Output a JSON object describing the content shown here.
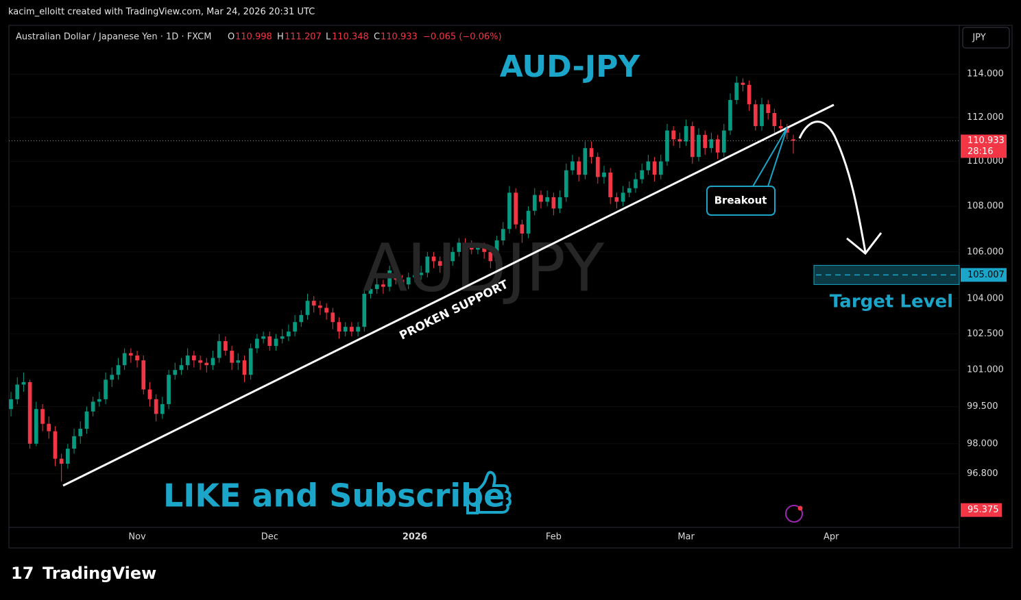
{
  "header": {
    "author_line": "kacim_elloitt created with TradingView.com, Mar 24, 2026 20:31 UTC",
    "symbol": "Australian Dollar / Japanese Yen · 1D · FXCM",
    "o_label": "O",
    "h_label": "H",
    "l_label": "L",
    "c_label": "C",
    "open": 110.998,
    "high": 111.207,
    "low": 110.348,
    "close": 110.933,
    "change": "−0.065 (−0.06%)",
    "currency": "JPY"
  },
  "chart_data": {
    "type": "candlestick",
    "title": "AUD-JPY",
    "watermark": "AUDJPY",
    "log": true,
    "up_color": "#089981",
    "down_color": "#f23645",
    "xlim": [
      -0.33,
      150.3
    ],
    "ylim": [
      94.7,
      116.2
    ],
    "xticks": [
      {
        "value": 20,
        "label": "Nov"
      },
      {
        "value": 41,
        "label": "Dec"
      },
      {
        "value": 64,
        "label": "2026"
      },
      {
        "value": 86,
        "label": "Feb"
      },
      {
        "value": 107,
        "label": "Mar"
      },
      {
        "value": 130,
        "label": "Apr"
      }
    ],
    "yticks": [
      {
        "value": 114,
        "label": "114.000"
      },
      {
        "value": 112,
        "label": "112.000"
      },
      {
        "value": 110,
        "label": "110.000"
      },
      {
        "value": 108,
        "label": "108.000"
      },
      {
        "value": 106,
        "label": "106.000"
      },
      {
        "value": 104,
        "label": "104.000"
      },
      {
        "value": 102.5,
        "label": "102.500"
      },
      {
        "value": 101,
        "label": "101.000"
      },
      {
        "value": 99.5,
        "label": "99.500"
      },
      {
        "value": 98,
        "label": "98.000"
      },
      {
        "value": 96.8,
        "label": "96.800"
      }
    ],
    "open": [
      99.4,
      99.8,
      100.4,
      100.5,
      98.0,
      99.4,
      98.8,
      98.5,
      97.4,
      97.2,
      97.8,
      98.3,
      98.6,
      99.3,
      99.7,
      99.8,
      100.6,
      100.8,
      101.2,
      101.7,
      101.6,
      101.4,
      100.2,
      99.8,
      99.2,
      99.6,
      100.8,
      101.0,
      101.2,
      101.6,
      101.4,
      101.3,
      101.2,
      101.5,
      102.2,
      101.8,
      101.3,
      101.4,
      100.8,
      101.9,
      102.3,
      102.4,
      102.0,
      102.3,
      102.4,
      102.6,
      103.0,
      103.3,
      103.9,
      103.7,
      103.6,
      103.4,
      103.0,
      102.6,
      102.8,
      102.6,
      102.8,
      104.2,
      104.4,
      104.6,
      104.5,
      105.2,
      104.8,
      104.6,
      104.9,
      105.0,
      105.1,
      105.8,
      105.6,
      105.4,
      105.6,
      106.0,
      106.4,
      106.3,
      106.1,
      106.2,
      106.0,
      105.6,
      106.5,
      107.0,
      108.6,
      107.2,
      106.8,
      107.8,
      108.5,
      108.2,
      108.4,
      107.9,
      108.4,
      109.6,
      110.0,
      109.4,
      110.6,
      110.2,
      109.3,
      109.5,
      108.4,
      108.2,
      108.6,
      108.8,
      109.2,
      109.6,
      110.0,
      109.4,
      110.0,
      111.4,
      111.0,
      110.9,
      111.6,
      110.2,
      111.2,
      110.6,
      111.0,
      110.4,
      111.4,
      112.8,
      113.6,
      113.5,
      112.6,
      111.6,
      112.6,
      112.2,
      111.6,
      111.5,
      110.998
    ],
    "high": [
      100.1,
      100.7,
      100.9,
      100.6,
      99.7,
      99.6,
      99.1,
      98.7,
      97.6,
      98.0,
      98.6,
      98.9,
      99.5,
      99.9,
      100.1,
      100.9,
      101.1,
      101.5,
      101.9,
      101.9,
      101.8,
      101.6,
      100.5,
      100.0,
      99.9,
      101.0,
      101.3,
      101.5,
      101.9,
      101.8,
      101.6,
      101.5,
      101.8,
      102.5,
      102.4,
      102.0,
      101.7,
      101.6,
      102.1,
      102.5,
      102.6,
      102.6,
      102.5,
      102.7,
      102.9,
      103.3,
      103.5,
      104.2,
      104.1,
      103.9,
      103.8,
      103.6,
      103.2,
      103.0,
      103.0,
      103.0,
      104.4,
      104.6,
      104.9,
      104.8,
      105.4,
      105.4,
      105.0,
      105.1,
      105.3,
      105.4,
      106.0,
      106.0,
      105.8,
      105.9,
      106.2,
      106.6,
      106.6,
      106.5,
      106.4,
      106.4,
      106.2,
      106.7,
      107.3,
      108.9,
      108.8,
      107.4,
      108.0,
      108.8,
      108.7,
      108.7,
      108.6,
      108.7,
      109.9,
      110.3,
      110.2,
      110.9,
      110.9,
      110.4,
      109.8,
      109.7,
      108.6,
      108.9,
      109.1,
      109.5,
      109.9,
      110.3,
      110.2,
      110.3,
      111.7,
      111.6,
      111.3,
      111.9,
      111.8,
      111.5,
      111.4,
      111.3,
      111.2,
      111.7,
      113.1,
      113.9,
      113.8,
      113.7,
      112.8,
      112.9,
      112.8,
      112.4,
      111.9,
      111.7,
      111.207
    ],
    "low": [
      99.1,
      99.6,
      100.1,
      97.8,
      97.9,
      98.5,
      98.2,
      97.1,
      96.5,
      97.0,
      97.6,
      98.0,
      98.4,
      99.1,
      99.5,
      99.6,
      100.3,
      100.6,
      101.0,
      101.3,
      101.1,
      100.0,
      99.5,
      98.9,
      99.0,
      99.4,
      100.6,
      100.8,
      101.0,
      101.1,
      101.0,
      100.9,
      101.0,
      101.3,
      101.6,
      101.0,
      101.0,
      100.5,
      100.6,
      101.7,
      102.1,
      101.8,
      101.8,
      102.1,
      102.2,
      102.4,
      102.8,
      103.1,
      103.4,
      103.3,
      103.1,
      102.7,
      102.3,
      102.4,
      102.4,
      102.4,
      102.6,
      104.0,
      104.2,
      104.2,
      104.3,
      104.6,
      104.4,
      104.4,
      104.7,
      104.8,
      104.9,
      105.3,
      105.1,
      105.2,
      105.4,
      105.8,
      106.1,
      105.9,
      105.9,
      105.7,
      105.3,
      105.4,
      106.3,
      106.8,
      107.0,
      106.4,
      106.6,
      107.6,
      107.9,
      108.0,
      107.6,
      107.7,
      108.2,
      109.4,
      109.1,
      109.2,
      109.9,
      109.0,
      109.0,
      108.1,
      107.9,
      108.0,
      108.4,
      108.6,
      109.0,
      109.4,
      109.1,
      109.2,
      109.8,
      110.7,
      110.6,
      110.7,
      109.9,
      110.0,
      110.3,
      110.4,
      110.1,
      110.2,
      111.2,
      112.6,
      113.2,
      112.3,
      111.4,
      111.4,
      111.9,
      111.3,
      111.3,
      111.0,
      110.348
    ],
    "close": [
      99.8,
      100.4,
      100.5,
      98.0,
      99.4,
      98.8,
      98.5,
      97.4,
      97.2,
      97.8,
      98.3,
      98.6,
      99.3,
      99.7,
      99.8,
      100.6,
      100.8,
      101.2,
      101.7,
      101.6,
      101.4,
      100.2,
      99.8,
      99.2,
      99.6,
      100.8,
      101.0,
      101.2,
      101.6,
      101.4,
      101.3,
      101.2,
      101.5,
      102.2,
      101.8,
      101.3,
      101.4,
      100.8,
      101.9,
      102.3,
      102.4,
      102.0,
      102.3,
      102.4,
      102.6,
      103.0,
      103.3,
      103.9,
      103.7,
      103.6,
      103.4,
      103.0,
      102.6,
      102.8,
      102.6,
      102.8,
      104.2,
      104.4,
      104.6,
      104.5,
      105.2,
      104.8,
      104.6,
      104.9,
      105.0,
      105.1,
      105.8,
      105.6,
      105.4,
      105.6,
      106.0,
      106.4,
      106.3,
      106.1,
      106.2,
      106.0,
      105.6,
      106.5,
      107.0,
      108.6,
      107.2,
      106.8,
      107.8,
      108.5,
      108.2,
      108.4,
      107.9,
      108.4,
      109.6,
      110.0,
      109.4,
      110.6,
      110.2,
      109.3,
      109.5,
      108.4,
      108.2,
      108.6,
      108.8,
      109.2,
      109.6,
      110.0,
      109.4,
      110.0,
      111.4,
      111.0,
      110.9,
      111.6,
      110.2,
      111.2,
      110.6,
      111.0,
      110.4,
      111.4,
      112.8,
      113.6,
      113.5,
      112.6,
      111.6,
      112.6,
      112.2,
      111.6,
      111.5,
      111.3,
      110.933
    ],
    "countdown": "28:16",
    "target_price": 105.007,
    "low_marker_price": 95.375,
    "annotations": {
      "support": "PROKEN SUPPORT",
      "breakout": "Breakout",
      "target": "Target Level",
      "cta": "LIKE and Subscribe"
    }
  },
  "footer": {
    "brand": "TradingView"
  }
}
